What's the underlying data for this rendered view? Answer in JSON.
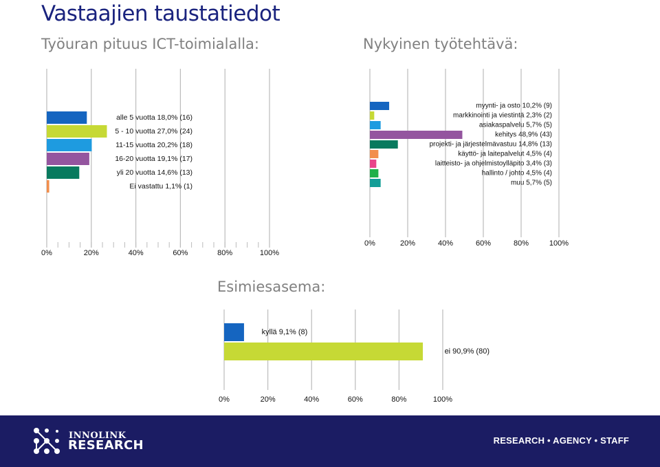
{
  "title": "Vastaajien taustatiedot",
  "colors": {
    "title": "#1a237e",
    "subtitle": "#808080",
    "footer_bg": "#1b1c63",
    "grid": "#bbbbbb"
  },
  "chart_data": [
    {
      "id": "career",
      "type": "bar",
      "orientation": "horizontal",
      "title": "Työuran pituus ICT-toimialalla:",
      "xlim": [
        0,
        100
      ],
      "ticks": [
        "0%",
        "20%",
        "40%",
        "60%",
        "80%",
        "100%"
      ],
      "grid": true,
      "bars": [
        {
          "label": "alle 5 vuotta 18,0% (16)",
          "value": 18.0,
          "color": "#1565c0"
        },
        {
          "label": "5 - 10 vuotta 27,0% (24)",
          "value": 27.0,
          "color": "#c6d935"
        },
        {
          "label": "11-15 vuotta 20,2% (18)",
          "value": 20.2,
          "color": "#1e9be0"
        },
        {
          "label": "16-20 vuotta 19,1% (17)",
          "value": 19.1,
          "color": "#94559f"
        },
        {
          "label": "yli 20 vuotta 14,6% (13)",
          "value": 14.6,
          "color": "#087a5e"
        },
        {
          "label": "Ei vastattu 1,1% (1)",
          "value": 1.1,
          "color": "#f28e4c"
        }
      ]
    },
    {
      "id": "task",
      "type": "bar",
      "orientation": "horizontal",
      "title": "Nykyinen työtehtävä:",
      "xlim": [
        0,
        100
      ],
      "ticks": [
        "0%",
        "20%",
        "40%",
        "60%",
        "80%",
        "100%"
      ],
      "grid": true,
      "bars": [
        {
          "label": "myynti- ja osto 10,2% (9)",
          "value": 10.2,
          "color": "#1565c0"
        },
        {
          "label": "markkinointi ja viestintä 2,3% (2)",
          "value": 2.3,
          "color": "#c6d935"
        },
        {
          "label": "asiakaspalvelu 5,7% (5)",
          "value": 5.7,
          "color": "#1e9be0"
        },
        {
          "label": "kehitys 48,9% (43)",
          "value": 48.9,
          "color": "#94559f"
        },
        {
          "label": "projekti- ja järjestelmävastuu 14,8% (13)",
          "value": 14.8,
          "color": "#087a5e"
        },
        {
          "label": "käyttö- ja laitepalvelut 4,5% (4)",
          "value": 4.5,
          "color": "#f28e4c"
        },
        {
          "label": "laitteisto- ja ohjelmistoylläpito 3,4% (3)",
          "value": 3.4,
          "color": "#e8458b"
        },
        {
          "label": "hallinto / johto 4,5% (4)",
          "value": 4.5,
          "color": "#1fb04a"
        },
        {
          "label": "muu 5,7% (5)",
          "value": 5.7,
          "color": "#149e97"
        }
      ]
    },
    {
      "id": "supervisor",
      "type": "bar",
      "orientation": "horizontal",
      "title": "Esimiesasema:",
      "xlim": [
        0,
        100
      ],
      "ticks": [
        "0%",
        "20%",
        "40%",
        "60%",
        "80%",
        "100%"
      ],
      "grid": true,
      "bars": [
        {
          "label": "kyllä 9,1% (8)",
          "value": 9.1,
          "color": "#1565c0"
        },
        {
          "label": "ei 90,9% (80)",
          "value": 90.9,
          "color": "#c6d935"
        }
      ]
    }
  ],
  "footer": {
    "logo_small": "INNOLINK",
    "logo_big": "RESEARCH",
    "tagline": "RESEARCH • AGENCY • STAFF"
  }
}
